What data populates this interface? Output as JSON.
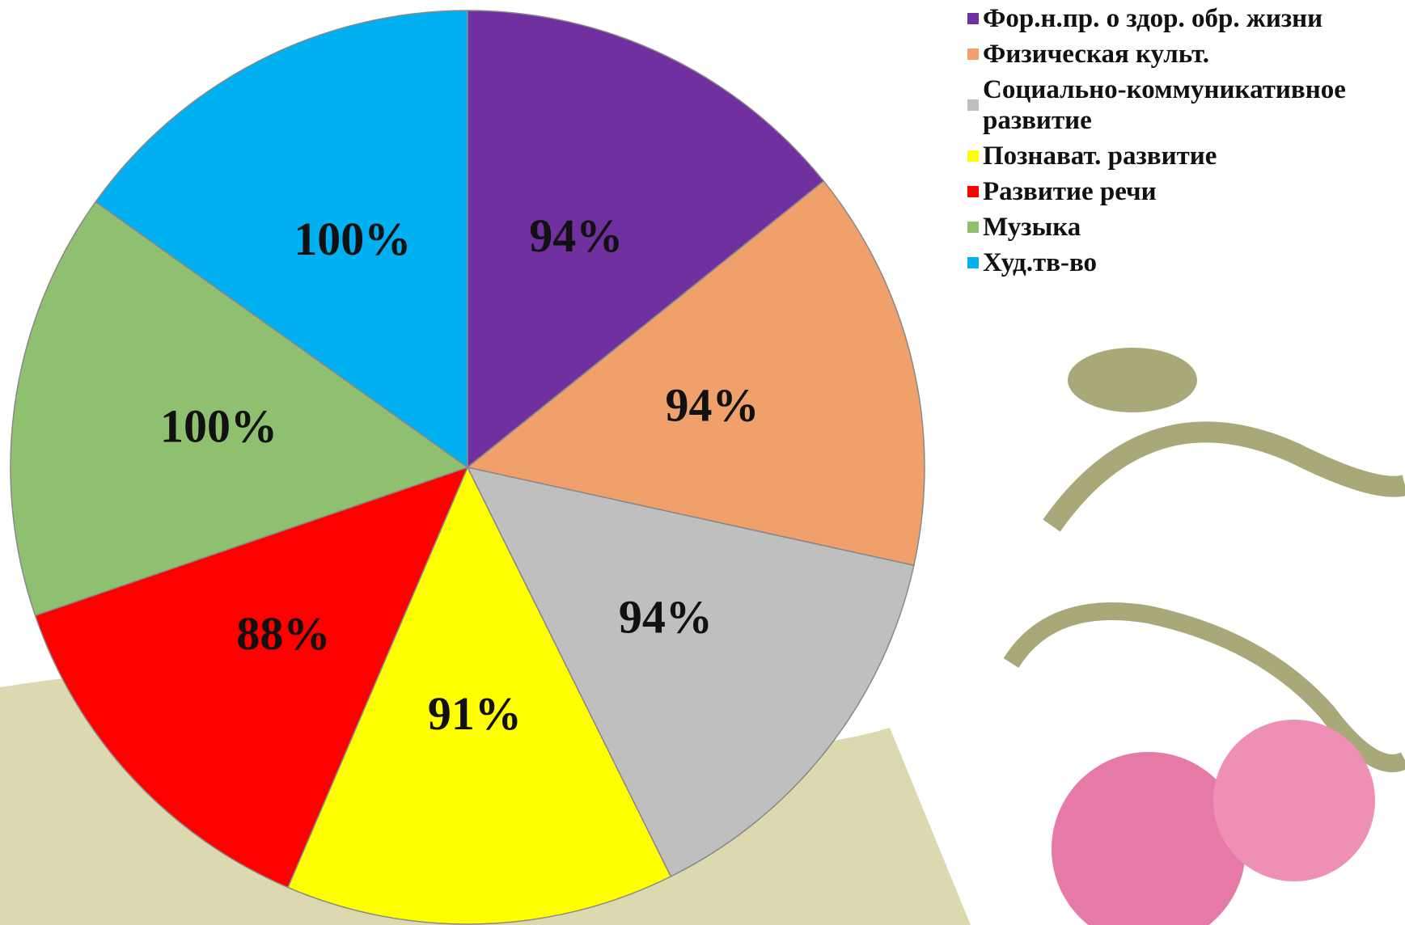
{
  "chart_data": {
    "type": "pie",
    "categories": [
      "Фор.н.пр. о здор. обр. жизни",
      "Физическая культ.",
      "Социально-коммуникативное развитие",
      "Познават. развитие",
      "Развитие речи",
      "Музыка",
      "Худ.тв-во"
    ],
    "values": [
      94,
      94,
      94,
      91,
      88,
      100,
      100
    ],
    "value_labels": [
      "94%",
      "94%",
      "94%",
      "91%",
      "88%",
      "100%",
      "100%"
    ],
    "colors": [
      "#7030a0",
      "#f0a06a",
      "#bfbfbf",
      "#ffff00",
      "#ff0000",
      "#8fc070",
      "#00b0f0"
    ],
    "legend": "top-right"
  }
}
